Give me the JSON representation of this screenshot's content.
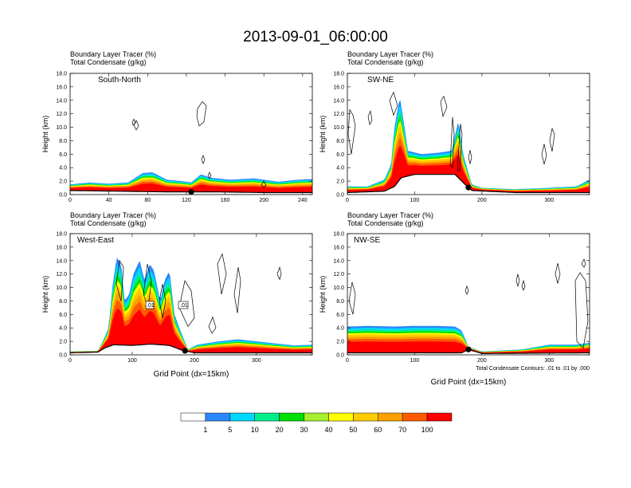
{
  "title": "2013-09-01_06:00:00",
  "colors": {
    "levels": [
      "#ffffff",
      "#2a87ff",
      "#00d8ff",
      "#00ef8c",
      "#00e000",
      "#a6ef2e",
      "#ffff00",
      "#ffcc00",
      "#ffa000",
      "#ff5a00",
      "#ff0000"
    ],
    "contour": "#000000",
    "terrain": "#000000"
  },
  "colorbar": {
    "labels": [
      "1",
      "5",
      "10",
      "20",
      "30",
      "40",
      "50",
      "60",
      "70",
      "100"
    ]
  },
  "chart_data": [
    {
      "type": "area",
      "name": "South-North",
      "title_line1": "Boundary Layer Tracer   (%)",
      "title_line2": "Total Condensate   (g/kg)",
      "label": "South-North",
      "ylabel": "Height (km)",
      "xlabel": "",
      "xlim": [
        0,
        250
      ],
      "ylim": [
        0,
        18
      ],
      "xticks": [
        0,
        40,
        80,
        120,
        160,
        200,
        240
      ],
      "yticks": [
        "0.0",
        "2.0",
        "4.0",
        "6.0",
        "8.0",
        "10.0",
        "12.0",
        "14.0",
        "16.0",
        "18.0"
      ],
      "marker_x": 125,
      "tracer_top_km": [
        [
          0,
          1.5
        ],
        [
          20,
          1.8
        ],
        [
          40,
          1.6
        ],
        [
          60,
          1.8
        ],
        [
          75,
          3.2
        ],
        [
          85,
          3.3
        ],
        [
          100,
          2.2
        ],
        [
          115,
          2.0
        ],
        [
          125,
          1.8
        ],
        [
          135,
          3.0
        ],
        [
          145,
          2.5
        ],
        [
          165,
          2.2
        ],
        [
          190,
          2.4
        ],
        [
          215,
          1.9
        ],
        [
          235,
          2.2
        ],
        [
          250,
          2.3
        ]
      ],
      "terrain_km": [
        [
          0,
          0.6
        ],
        [
          50,
          0.5
        ],
        [
          100,
          0.4
        ],
        [
          125,
          0.4
        ],
        [
          150,
          0.4
        ],
        [
          200,
          0.3
        ],
        [
          250,
          0.3
        ]
      ],
      "condensate_contours": [
        [
          [
            248,
            12.8
          ],
          [
            254,
            13.8
          ],
          [
            259,
            13.2
          ],
          [
            256,
            10.8
          ],
          [
            250,
            10.2
          ],
          [
            247,
            11.6
          ],
          [
            248,
            12.8
          ]
        ],
        [
          [
            168,
            10.3
          ],
          [
            171,
            11.0
          ],
          [
            174,
            10.2
          ],
          [
            171,
            9.6
          ],
          [
            168,
            10.3
          ]
        ],
        [
          [
            166,
            10.7
          ],
          [
            168,
            11.2
          ],
          [
            170,
            10.6
          ],
          [
            167,
            10.3
          ],
          [
            166,
            10.7
          ]
        ],
        [
          [
            253,
            5.2
          ],
          [
            255,
            5.8
          ],
          [
            257,
            5.2
          ],
          [
            255,
            4.6
          ],
          [
            253,
            5.2
          ]
        ],
        [
          [
            261,
            2.8
          ],
          [
            263,
            3.3
          ],
          [
            265,
            2.8
          ],
          [
            263,
            2.4
          ],
          [
            261,
            2.8
          ]
        ],
        [
          [
            328,
            1.4
          ],
          [
            331,
            2.0
          ],
          [
            334,
            1.4
          ],
          [
            331,
            1.0
          ],
          [
            328,
            1.4
          ]
        ]
      ]
    },
    {
      "type": "area",
      "name": "SW-NE",
      "title_line1": "Boundary Layer Tracer   (%)",
      "title_line2": "Total Condensate   (g/kg)",
      "label": "SW-NE",
      "ylabel": "Height (km)",
      "xlabel": "",
      "xlim": [
        0,
        360
      ],
      "ylim": [
        0,
        18
      ],
      "xticks": [
        0,
        100,
        200,
        300
      ],
      "yticks": [
        "0.0",
        "2.0",
        "4.0",
        "6.0",
        "8.0",
        "10.0",
        "12.0",
        "14.0",
        "16.0",
        "18.0"
      ],
      "marker_x": 180,
      "tracer_top_km": [
        [
          0,
          1.2
        ],
        [
          30,
          1.2
        ],
        [
          55,
          2.2
        ],
        [
          65,
          4.5
        ],
        [
          70,
          10.0
        ],
        [
          78,
          14.5
        ],
        [
          85,
          10.0
        ],
        [
          90,
          6.5
        ],
        [
          110,
          6.0
        ],
        [
          135,
          6.2
        ],
        [
          155,
          6.5
        ],
        [
          165,
          11.0
        ],
        [
          172,
          6.0
        ],
        [
          185,
          1.5
        ],
        [
          200,
          1.0
        ],
        [
          250,
          0.8
        ],
        [
          300,
          1.0
        ],
        [
          340,
          1.2
        ],
        [
          360,
          2.2
        ]
      ],
      "terrain_km": [
        [
          0,
          0.3
        ],
        [
          55,
          0.5
        ],
        [
          70,
          1.2
        ],
        [
          80,
          2.5
        ],
        [
          100,
          3.0
        ],
        [
          140,
          3.0
        ],
        [
          160,
          3.0
        ],
        [
          175,
          1.5
        ],
        [
          185,
          0.6
        ],
        [
          250,
          0.3
        ],
        [
          360,
          0.3
        ]
      ],
      "condensate_contours": [
        [
          [
            441,
            6.0
          ],
          [
            446,
            10.2
          ],
          [
            443,
            11.8
          ],
          [
            439,
            12.6
          ],
          [
            437,
            9.0
          ],
          [
            441,
            6.0
          ]
        ],
        [
          [
            462,
            11.6
          ],
          [
            465,
            12.4
          ],
          [
            467,
            11.0
          ],
          [
            464,
            10.4
          ],
          [
            462,
            11.6
          ]
        ],
        [
          [
            489,
            14.0
          ],
          [
            494,
            15.2
          ],
          [
            499,
            13.2
          ],
          [
            494,
            11.8
          ],
          [
            489,
            14.0
          ]
        ],
        [
          [
            553,
            13.8
          ],
          [
            557,
            14.6
          ],
          [
            561,
            13.0
          ],
          [
            556,
            11.6
          ],
          [
            553,
            13.8
          ]
        ],
        [
          [
            565,
            4.5
          ],
          [
            568,
            11.5
          ],
          [
            570,
            9.0
          ],
          [
            568,
            4.0
          ],
          [
            565,
            4.5
          ]
        ],
        [
          [
            574,
            3.5
          ],
          [
            578,
            10.5
          ],
          [
            580,
            9.0
          ],
          [
            577,
            3.5
          ],
          [
            574,
            3.5
          ]
        ],
        [
          [
            588,
            5.5
          ],
          [
            590,
            6.6
          ],
          [
            592,
            5.5
          ],
          [
            590,
            4.6
          ],
          [
            588,
            5.5
          ]
        ],
        [
          [
            680,
            6.0
          ],
          [
            683,
            7.5
          ],
          [
            686,
            5.8
          ],
          [
            683,
            4.5
          ],
          [
            680,
            6.0
          ]
        ],
        [
          [
            690,
            8.0
          ],
          [
            693,
            9.8
          ],
          [
            696,
            9.0
          ],
          [
            693,
            6.4
          ],
          [
            690,
            8.0
          ]
        ]
      ]
    },
    {
      "type": "area",
      "name": "West-East",
      "title_line1": "Boundary Layer Tracer   (%)",
      "title_line2": "Total Condensate   (g/kg)",
      "label": "West-East",
      "ylabel": "Height (km)",
      "xlabel": "Grid Point (dx=15km)",
      "xlim": [
        0,
        390
      ],
      "ylim": [
        0,
        18
      ],
      "xticks": [
        0,
        100,
        200,
        300
      ],
      "yticks": [
        "0.0",
        "2.0",
        "4.0",
        "6.0",
        "8.0",
        "10.0",
        "12.0",
        "14.0",
        "16.0",
        "18.0"
      ],
      "marker_x": 185,
      "contour_labels": [
        ".01",
        ".01"
      ],
      "tracer_top_km": [
        [
          0,
          0.5
        ],
        [
          45,
          0.6
        ],
        [
          55,
          2.5
        ],
        [
          62,
          4.0
        ],
        [
          68,
          10.0
        ],
        [
          75,
          14.5
        ],
        [
          82,
          13.5
        ],
        [
          88,
          8.0
        ],
        [
          95,
          9.0
        ],
        [
          102,
          12.0
        ],
        [
          112,
          14.0
        ],
        [
          120,
          11.0
        ],
        [
          128,
          13.5
        ],
        [
          135,
          12.5
        ],
        [
          145,
          8.0
        ],
        [
          152,
          11.0
        ],
        [
          160,
          12.5
        ],
        [
          168,
          6.0
        ],
        [
          178,
          3.5
        ],
        [
          190,
          0.8
        ],
        [
          205,
          1.5
        ],
        [
          240,
          2.0
        ],
        [
          270,
          2.3
        ],
        [
          320,
          1.8
        ],
        [
          360,
          1.4
        ],
        [
          390,
          1.5
        ]
      ],
      "terrain_km": [
        [
          0,
          0.3
        ],
        [
          45,
          0.4
        ],
        [
          55,
          1.0
        ],
        [
          70,
          1.5
        ],
        [
          100,
          1.4
        ],
        [
          130,
          1.6
        ],
        [
          160,
          1.4
        ],
        [
          180,
          0.7
        ],
        [
          200,
          0.3
        ],
        [
          390,
          0.3
        ]
      ],
      "condensate_contours": [
        [
          [
            146,
            10.5
          ],
          [
            150,
            14.0
          ],
          [
            155,
            13.0
          ],
          [
            152,
            8.0
          ],
          [
            146,
            10.5
          ]
        ],
        [
          [
            180,
            9.0
          ],
          [
            185,
            13.5
          ],
          [
            190,
            11.0
          ],
          [
            186,
            7.0
          ],
          [
            180,
            9.0
          ]
        ],
        [
          [
            200,
            8.0
          ],
          [
            204,
            10.5
          ],
          [
            208,
            8.0
          ],
          [
            204,
            5.5
          ],
          [
            200,
            8.0
          ]
        ],
        [
          [
            225,
            7.0
          ],
          [
            232,
            11.0
          ],
          [
            240,
            9.5
          ],
          [
            244,
            5.5
          ],
          [
            236,
            4.2
          ],
          [
            225,
            7.0
          ]
        ],
        [
          [
            273,
            13.5
          ],
          [
            279,
            15.0
          ],
          [
            284,
            12.0
          ],
          [
            278,
            9.0
          ],
          [
            273,
            13.5
          ]
        ],
        [
          [
            294,
            9.0
          ],
          [
            299,
            13.0
          ],
          [
            302,
            11.0
          ],
          [
            298,
            6.2
          ],
          [
            294,
            9.0
          ]
        ],
        [
          [
            348,
            12.0
          ],
          [
            351,
            13.0
          ],
          [
            353,
            12.0
          ],
          [
            351,
            11.2
          ],
          [
            348,
            12.0
          ]
        ],
        [
          [
            262,
            4.2
          ],
          [
            267,
            5.6
          ],
          [
            271,
            4.0
          ],
          [
            266,
            3.2
          ],
          [
            262,
            4.2
          ]
        ]
      ]
    },
    {
      "type": "area",
      "name": "NW-SE",
      "title_line1": "Boundary Layer Tracer   (%)",
      "title_line2": "Total Condensate   (g/kg)",
      "label": "NW-SE",
      "ylabel": "Height (km)",
      "xlabel": "Grid Point (dx=15km)",
      "xlim": [
        0,
        360
      ],
      "ylim": [
        0,
        18
      ],
      "xticks": [
        0,
        100,
        200,
        300
      ],
      "yticks": [
        "0.0",
        "2.0",
        "4.0",
        "6.0",
        "8.0",
        "10.0",
        "12.0",
        "14.0",
        "16.0",
        "18.0"
      ],
      "marker_x": 180,
      "note": "Total Condensate Contours: .01 to .01 by .000",
      "tracer_top_km": [
        [
          0,
          4.2
        ],
        [
          30,
          4.3
        ],
        [
          70,
          4.2
        ],
        [
          100,
          4.3
        ],
        [
          130,
          4.3
        ],
        [
          160,
          4.2
        ],
        [
          170,
          3.6
        ],
        [
          180,
          1.2
        ],
        [
          200,
          0.5
        ],
        [
          260,
          0.8
        ],
        [
          300,
          1.5
        ],
        [
          340,
          1.5
        ],
        [
          360,
          1.8
        ]
      ],
      "terrain_km": [
        [
          0,
          0.3
        ],
        [
          100,
          0.3
        ],
        [
          170,
          0.3
        ],
        [
          180,
          0.8
        ],
        [
          200,
          0.2
        ],
        [
          360,
          0.3
        ]
      ],
      "condensate_contours": [
        [
          [
            438,
            8.0
          ],
          [
            442,
            10.8
          ],
          [
            446,
            9.0
          ],
          [
            443,
            6.0
          ],
          [
            438,
            8.0
          ]
        ],
        [
          [
            584,
            9.5
          ],
          [
            586,
            10.2
          ],
          [
            588,
            9.5
          ],
          [
            586,
            9.0
          ],
          [
            584,
            9.5
          ]
        ],
        [
          [
            648,
            11.0
          ],
          [
            650,
            12.0
          ],
          [
            652,
            11.0
          ],
          [
            650,
            10.2
          ],
          [
            648,
            11.0
          ]
        ],
        [
          [
            655,
            10.2
          ],
          [
            657,
            11.0
          ],
          [
            659,
            10.2
          ],
          [
            657,
            9.6
          ],
          [
            655,
            10.2
          ]
        ],
        [
          [
            697,
            12.0
          ],
          [
            700,
            13.6
          ],
          [
            703,
            12.0
          ],
          [
            700,
            10.6
          ],
          [
            697,
            12.0
          ]
        ],
        [
          [
            722,
            11.0
          ],
          [
            728,
            12.2
          ],
          [
            735,
            11.0
          ],
          [
            738,
            5.0
          ],
          [
            732,
            1.0
          ],
          [
            724,
            2.0
          ],
          [
            722,
            11.0
          ]
        ],
        [
          [
            730,
            13.5
          ],
          [
            733,
            14.2
          ],
          [
            735,
            13.5
          ],
          [
            733,
            13.0
          ],
          [
            730,
            13.5
          ]
        ]
      ]
    }
  ]
}
